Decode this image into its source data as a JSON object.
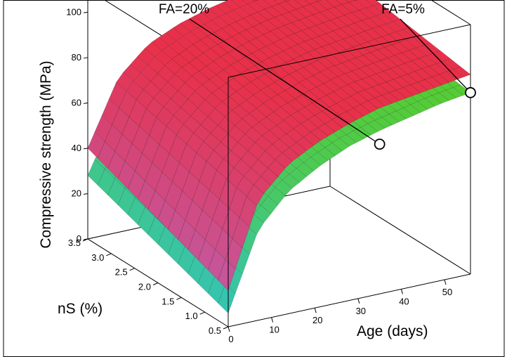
{
  "chart_data": {
    "type": "surface3d",
    "xlabel": "Age (days)",
    "ylabel": "nS (%)",
    "zlabel": "Compressive strength (MPa)",
    "x_ticks": [
      "0",
      "10",
      "20",
      "30",
      "40",
      "50"
    ],
    "y_ticks": [
      "0.5",
      "1.0",
      "1.5",
      "2.0",
      "2.5",
      "3.0",
      "3.5"
    ],
    "z_ticks": [
      "0",
      "20",
      "40",
      "60",
      "80",
      "100"
    ],
    "xlim": [
      0,
      56
    ],
    "ylim": [
      0.5,
      3.5
    ],
    "zlim": [
      0,
      110
    ],
    "grid": false,
    "series": [
      {
        "name": "FA=5%",
        "color_low": "#c05ca8",
        "color_high": "#e8304a",
        "grid_x": [
          0,
          7,
          14,
          21,
          28,
          35,
          42,
          49,
          56
        ],
        "grid_y": [
          0.5,
          1.0,
          1.5,
          2.0,
          2.5,
          3.0,
          3.5
        ],
        "z_at_y_0_5": [
          16,
          53,
          66,
          73,
          78,
          82,
          84,
          86,
          88
        ],
        "z_at_y_3_5": [
          40,
          68,
          80,
          86,
          90,
          93,
          95,
          97,
          98
        ]
      },
      {
        "name": "FA=20%",
        "color_low": "#36c4b0",
        "color_high": "#55cc34",
        "grid_x": [
          0,
          7,
          14,
          21,
          28,
          35,
          42,
          49,
          56
        ],
        "grid_y": [
          0.5,
          1.0,
          1.5,
          2.0,
          2.5,
          3.0,
          3.5
        ],
        "z_at_y_0_5": [
          6,
          40,
          54,
          62,
          68,
          72,
          75,
          78,
          80
        ],
        "z_at_y_3_5": [
          28,
          55,
          67,
          74,
          79,
          82,
          85,
          87,
          89
        ]
      }
    ],
    "annotations": [
      {
        "text": "FA=20%",
        "points_to": {
          "x": 35,
          "y": 0.5,
          "z": 66
        }
      },
      {
        "text": "FA=5%",
        "points_to": {
          "x": 56,
          "y": 0.5,
          "z": 80
        }
      }
    ]
  }
}
